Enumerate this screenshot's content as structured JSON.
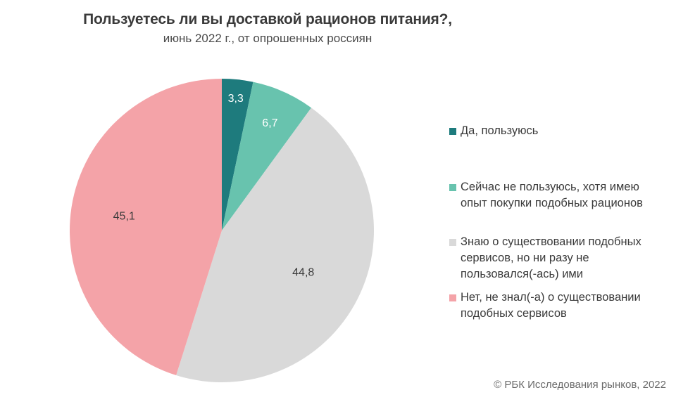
{
  "chart_data": {
    "type": "pie",
    "title": "Пользуетесь ли вы доставкой рационов питания?,",
    "subtitle": "июнь 2022 г., от опрошенных россиян",
    "categories": [
      "Да, пользуюсь",
      "Сейчас не пользуюсь, хотя имею опыт покупки подобных рационов",
      "Знаю о существовании подобных сервисов, но ни разу не пользовался(-ась) ими",
      "Нет, не знал(-а) о существовании подобных сервисов"
    ],
    "values": [
      3.3,
      6.7,
      44.8,
      45.1
    ],
    "value_labels": [
      "3,3",
      "6,7",
      "44,8",
      "45,1"
    ],
    "colors": [
      "#1e7b7d",
      "#68c3ae",
      "#d9d9d9",
      "#f4a3a8"
    ],
    "label_colors": [
      "#ffffff",
      "#ffffff",
      "#3a3a3a",
      "#3a3a3a"
    ],
    "start_angle": "12 o'clock",
    "direction": "clockwise",
    "legend_position": "right"
  },
  "legend": {
    "items": [
      {
        "lines": [
          "Да, пользуюсь"
        ]
      },
      {
        "lines": [
          "Сейчас не пользуюсь, хотя имею",
          "опыт покупки подобных рационов"
        ]
      },
      {
        "lines": [
          "Знаю о существовании подобных",
          "сервисов, но ни разу не",
          "пользовался(-ась) ими"
        ]
      },
      {
        "lines": [
          "Нет, не знал(-а) о существовании",
          "подобных сервисов"
        ]
      }
    ]
  },
  "source": "© РБК Исследования рынков, 2022"
}
